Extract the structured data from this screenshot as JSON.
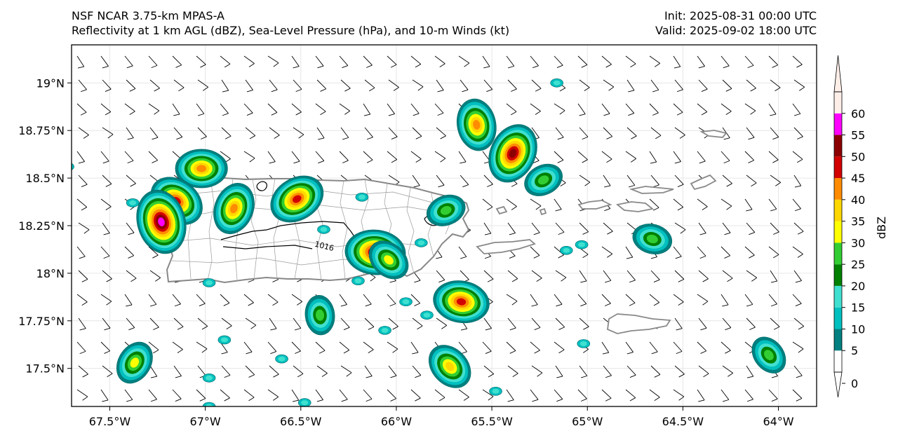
{
  "title": {
    "left_line1": "NSF NCAR 3.75-km MPAS-A",
    "left_line2": "Reflectivity at 1 km AGL (dBZ), Sea-Level Pressure (hPa), and 10-m Winds (kt)",
    "right_line1": "Init: 2025-08-31 00:00 UTC",
    "right_line2": "Valid: 2025-09-02 18:00 UTC"
  },
  "map": {
    "region": "Puerto Rico and Virgin Islands",
    "lon_range": [
      -67.7,
      -63.8
    ],
    "lat_range": [
      17.3,
      19.2
    ],
    "lon_ticks": [
      {
        "value": -67.5,
        "label": "67.5°W"
      },
      {
        "value": -67.0,
        "label": "67°W"
      },
      {
        "value": -66.5,
        "label": "66.5°W"
      },
      {
        "value": -66.0,
        "label": "66°W"
      },
      {
        "value": -65.5,
        "label": "65.5°W"
      },
      {
        "value": -65.0,
        "label": "65°W"
      },
      {
        "value": -64.5,
        "label": "64.5°W"
      },
      {
        "value": -64.0,
        "label": "64°W"
      }
    ],
    "lat_ticks": [
      {
        "value": 19.0,
        "label": "19°N"
      },
      {
        "value": 18.75,
        "label": "18.75°N"
      },
      {
        "value": 18.5,
        "label": "18.5°N"
      },
      {
        "value": 18.25,
        "label": "18.25°N"
      },
      {
        "value": 18.0,
        "label": "18°N"
      },
      {
        "value": 17.75,
        "label": "17.75°N"
      },
      {
        "value": 17.5,
        "label": "17.5°N"
      }
    ],
    "isobar_label": "1016",
    "wind_barbs": "southeasterly ~5-10 kt across domain"
  },
  "colorbar": {
    "label": "dBZ",
    "ticks": [
      "0",
      "5",
      "10",
      "15",
      "20",
      "25",
      "30",
      "35",
      "40",
      "45",
      "50",
      "55",
      "60"
    ],
    "colors": [
      "#ffffff",
      "#008080",
      "#00bfbf",
      "#40e0d0",
      "#008000",
      "#32cd32",
      "#ffff00",
      "#ffd700",
      "#ff8c00",
      "#d20000",
      "#8b0000",
      "#ff00ff",
      "#fdeee8"
    ]
  },
  "storms": [
    {
      "lon": -67.02,
      "lat": 18.55,
      "max_dbz": 40
    },
    {
      "lon": -67.15,
      "lat": 18.38,
      "max_dbz": 45
    },
    {
      "lon": -67.23,
      "lat": 18.27,
      "max_dbz": 55
    },
    {
      "lon": -66.85,
      "lat": 18.34,
      "max_dbz": 40
    },
    {
      "lon": -66.52,
      "lat": 18.39,
      "max_dbz": 45
    },
    {
      "lon": -66.11,
      "lat": 18.11,
      "max_dbz": 50
    },
    {
      "lon": -66.04,
      "lat": 18.07,
      "max_dbz": 30
    },
    {
      "lon": -65.58,
      "lat": 18.78,
      "max_dbz": 40
    },
    {
      "lon": -65.39,
      "lat": 18.63,
      "max_dbz": 50
    },
    {
      "lon": -65.23,
      "lat": 18.49,
      "max_dbz": 25
    },
    {
      "lon": -65.66,
      "lat": 17.85,
      "max_dbz": 45
    },
    {
      "lon": -65.72,
      "lat": 17.51,
      "max_dbz": 35
    },
    {
      "lon": -66.4,
      "lat": 17.78,
      "max_dbz": 25
    },
    {
      "lon": -67.37,
      "lat": 17.53,
      "max_dbz": 30
    },
    {
      "lon": -65.74,
      "lat": 18.33,
      "max_dbz": 25
    },
    {
      "lon": -64.66,
      "lat": 18.18,
      "max_dbz": 25
    },
    {
      "lon": -64.05,
      "lat": 17.57,
      "max_dbz": 25
    }
  ]
}
